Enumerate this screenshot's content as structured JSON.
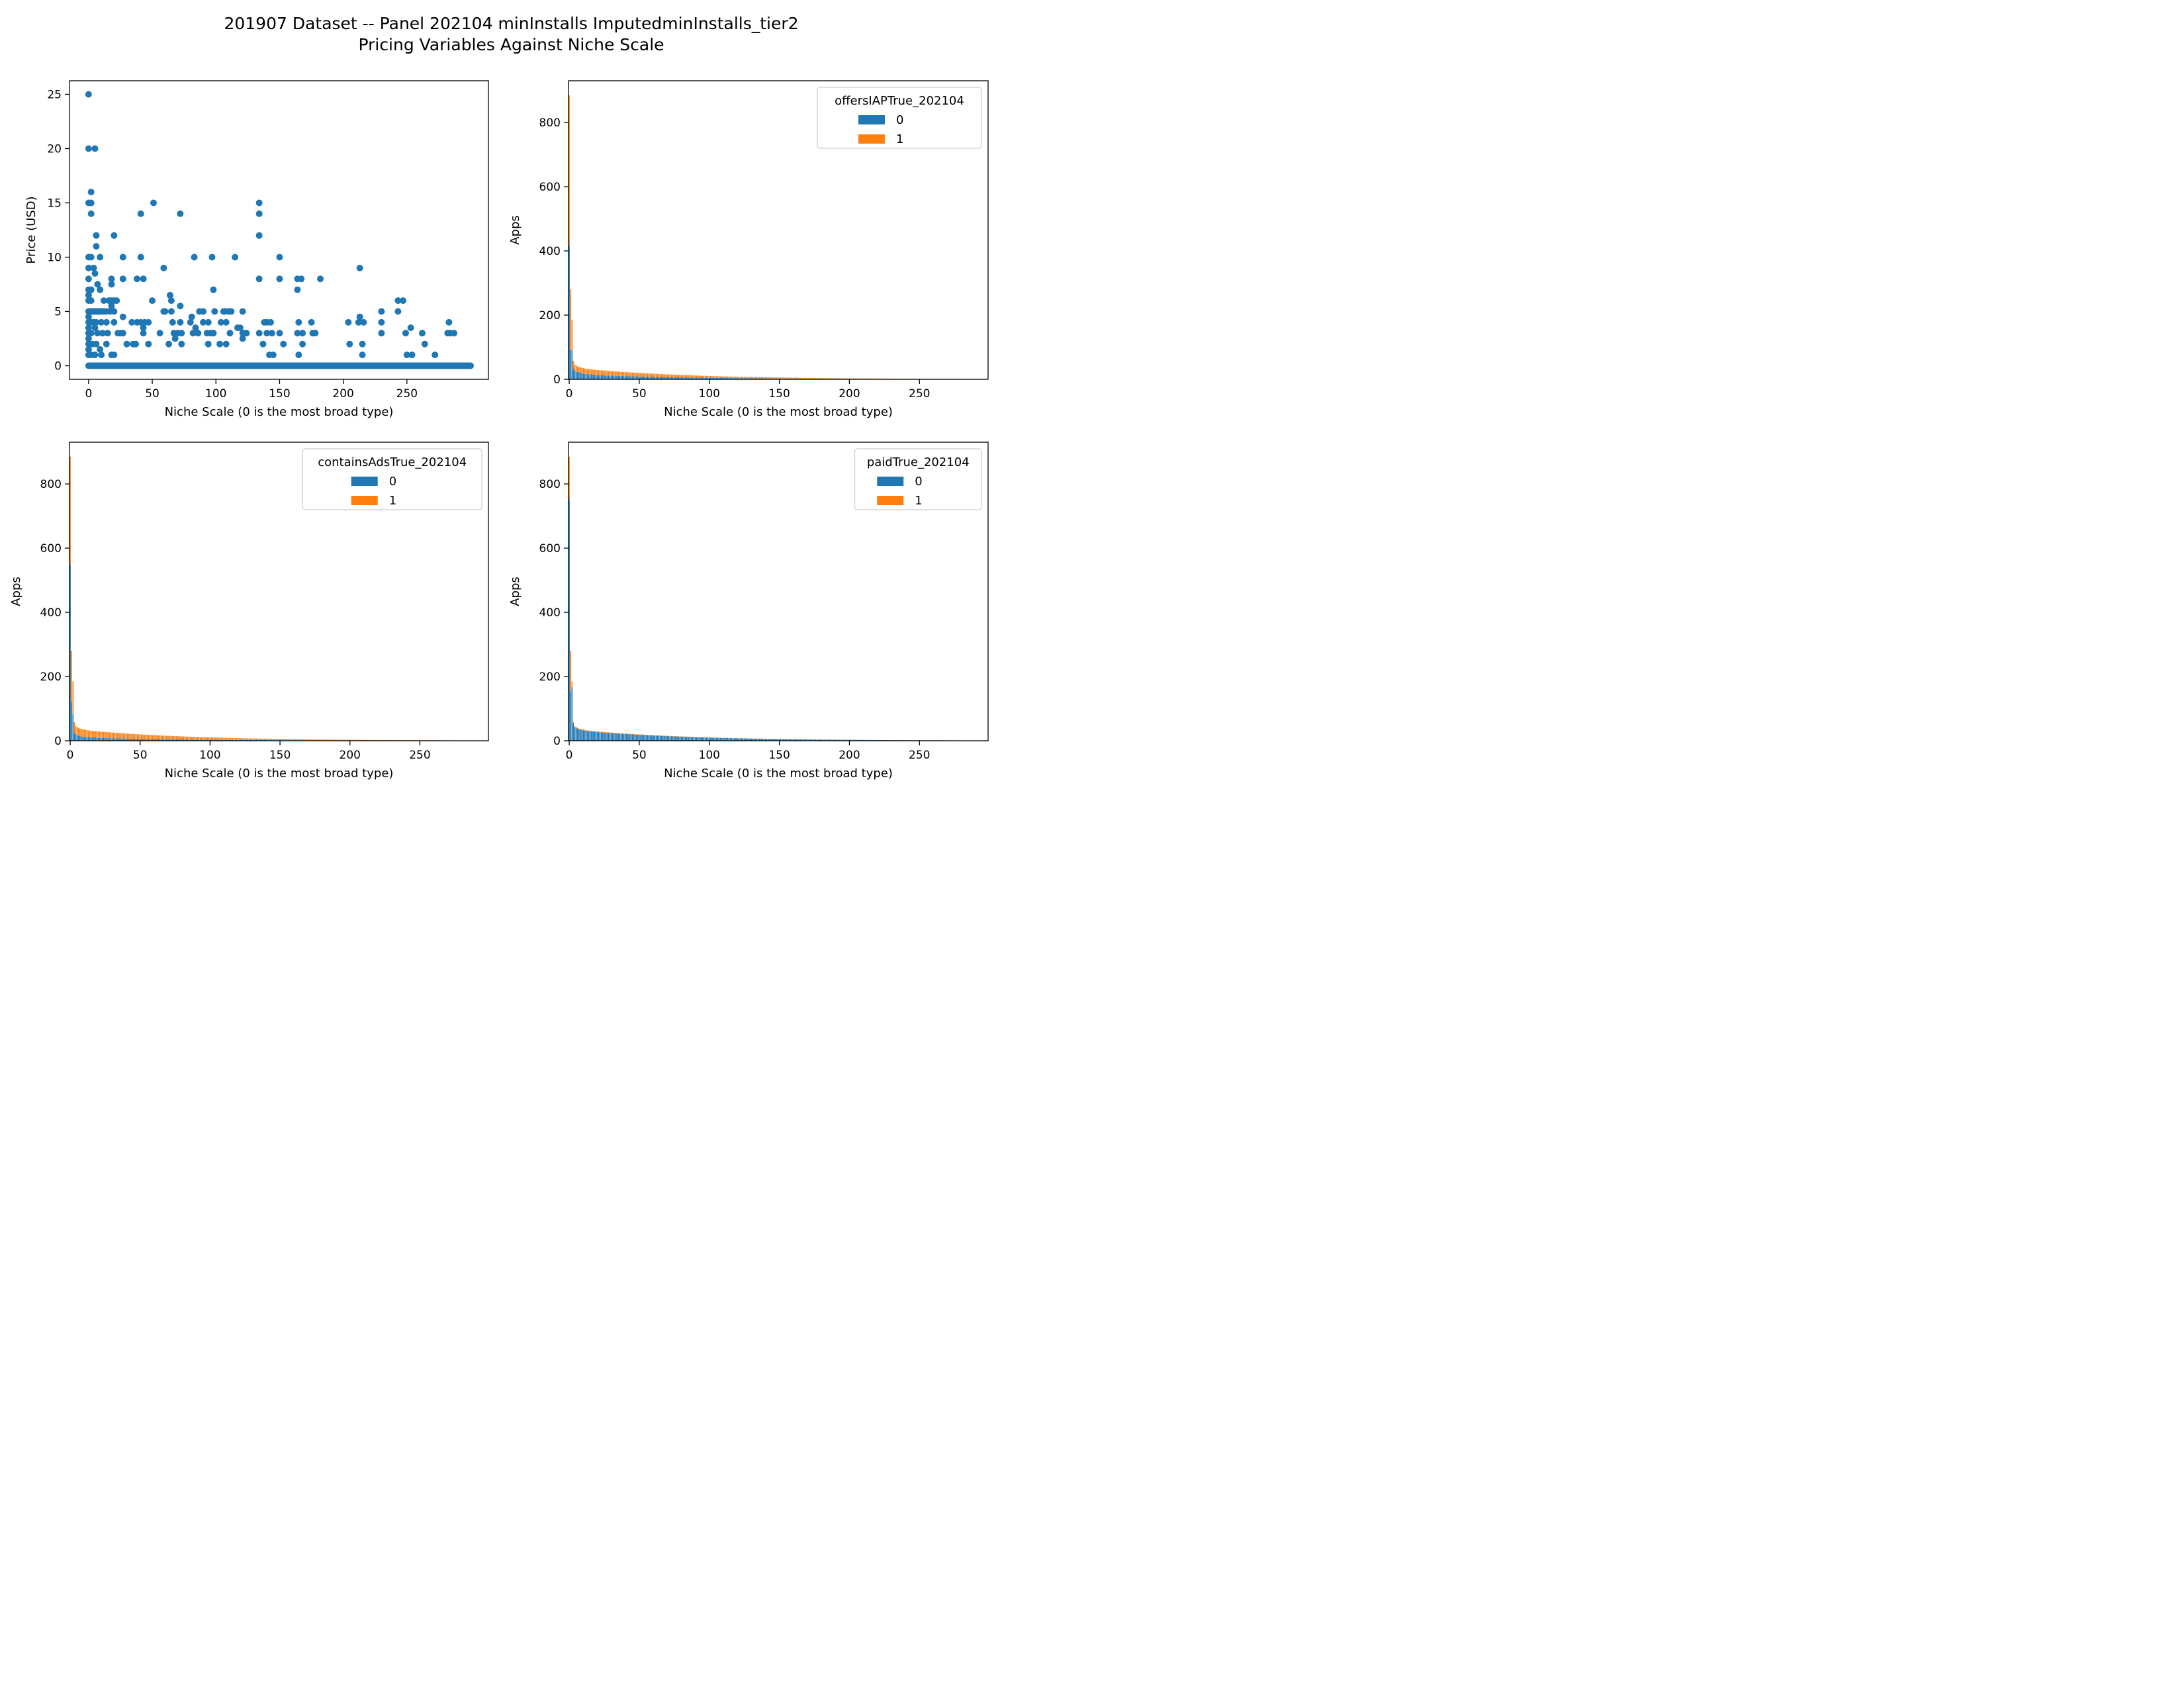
{
  "figure": {
    "title_line1": "201907 Dataset -- Panel 202104 minInstalls ImputedminInstalls_tier2",
    "title_line2": "Pricing Variables Against Niche Scale"
  },
  "colors": {
    "series0": "#1f77b4",
    "series1": "#ff7f0e",
    "axis": "#000000"
  },
  "chart_data": [
    {
      "type": "scatter",
      "xlabel": "Niche Scale (0 is the most broad type)",
      "ylabel": "Price (USD)",
      "xlim": [
        -15,
        314
      ],
      "ylim": [
        -1.25,
        26.25
      ],
      "xticks": [
        0,
        50,
        100,
        150,
        200,
        250
      ],
      "yticks": [
        0,
        5,
        10,
        15,
        20,
        25
      ],
      "baseline": {
        "y": 0,
        "x_from": 0,
        "x_to": 300
      },
      "points": [
        [
          0,
          25
        ],
        [
          0,
          20
        ],
        [
          5,
          20
        ],
        [
          0,
          15
        ],
        [
          2,
          15
        ],
        [
          2,
          16
        ],
        [
          2,
          14
        ],
        [
          0,
          10
        ],
        [
          2,
          10
        ],
        [
          6,
          12
        ],
        [
          6,
          11
        ],
        [
          9,
          10
        ],
        [
          0,
          9
        ],
        [
          4,
          9
        ],
        [
          5,
          8.5
        ],
        [
          0,
          8
        ],
        [
          7,
          7.5
        ],
        [
          0,
          7
        ],
        [
          2,
          7
        ],
        [
          9,
          7
        ],
        [
          0,
          6.5
        ],
        [
          0,
          6
        ],
        [
          2,
          6
        ],
        [
          12,
          6
        ],
        [
          16,
          6
        ],
        [
          0,
          5
        ],
        [
          1,
          5
        ],
        [
          2,
          5
        ],
        [
          3,
          5
        ],
        [
          4,
          5
        ],
        [
          5,
          5
        ],
        [
          6,
          5
        ],
        [
          7,
          5
        ],
        [
          8,
          5
        ],
        [
          9,
          5
        ],
        [
          10,
          5
        ],
        [
          12,
          5
        ],
        [
          14,
          5
        ],
        [
          17,
          5
        ],
        [
          20,
          5
        ],
        [
          0,
          4.5
        ],
        [
          2,
          4
        ],
        [
          0,
          4
        ],
        [
          4,
          4
        ],
        [
          6,
          4
        ],
        [
          10,
          4
        ],
        [
          14,
          4
        ],
        [
          20,
          4
        ],
        [
          0,
          3.5
        ],
        [
          5,
          3.5
        ],
        [
          0,
          3
        ],
        [
          2,
          3
        ],
        [
          7,
          3
        ],
        [
          11,
          3
        ],
        [
          15,
          3
        ],
        [
          0,
          2.5
        ],
        [
          3,
          2
        ],
        [
          6,
          2
        ],
        [
          0,
          2
        ],
        [
          14,
          2
        ],
        [
          0,
          1.5
        ],
        [
          9,
          1.5
        ],
        [
          0,
          1
        ],
        [
          2,
          1
        ],
        [
          5,
          1
        ],
        [
          10,
          1
        ],
        [
          18,
          1
        ],
        [
          20,
          1
        ],
        [
          18,
          8
        ],
        [
          18,
          7.5
        ],
        [
          18,
          6
        ],
        [
          18,
          5.5
        ],
        [
          20,
          12
        ],
        [
          20,
          6
        ],
        [
          22,
          6
        ],
        [
          23,
          3
        ],
        [
          25,
          3
        ],
        [
          27,
          8
        ],
        [
          27,
          10
        ],
        [
          27,
          4.5
        ],
        [
          27,
          3
        ],
        [
          30,
          2
        ],
        [
          34,
          4
        ],
        [
          35,
          2
        ],
        [
          37,
          2
        ],
        [
          38,
          8
        ],
        [
          38,
          4
        ],
        [
          41,
          14
        ],
        [
          41,
          10
        ],
        [
          41,
          4
        ],
        [
          43,
          8
        ],
        [
          43,
          3.5
        ],
        [
          43,
          3
        ],
        [
          44,
          4
        ],
        [
          47,
          2
        ],
        [
          47,
          4
        ],
        [
          50,
          6
        ],
        [
          51,
          15
        ],
        [
          56,
          3
        ],
        [
          59,
          9
        ],
        [
          59,
          5
        ],
        [
          60,
          5
        ],
        [
          63,
          2
        ],
        [
          64,
          6.5
        ],
        [
          65,
          6
        ],
        [
          65,
          5
        ],
        [
          66,
          4
        ],
        [
          67,
          3
        ],
        [
          68,
          2.5
        ],
        [
          70,
          3
        ],
        [
          72,
          14
        ],
        [
          72,
          5.5
        ],
        [
          72,
          4
        ],
        [
          73,
          3
        ],
        [
          73,
          2
        ],
        [
          80,
          4
        ],
        [
          81,
          4.5
        ],
        [
          82,
          3
        ],
        [
          83,
          10
        ],
        [
          84,
          3.5
        ],
        [
          86,
          3
        ],
        [
          87,
          5
        ],
        [
          90,
          4
        ],
        [
          90,
          5
        ],
        [
          93,
          3
        ],
        [
          94,
          4
        ],
        [
          94,
          2
        ],
        [
          96,
          3
        ],
        [
          97,
          10
        ],
        [
          98,
          3
        ],
        [
          98,
          7
        ],
        [
          99,
          5
        ],
        [
          103,
          2
        ],
        [
          104,
          4
        ],
        [
          106,
          5
        ],
        [
          107,
          5
        ],
        [
          108,
          2
        ],
        [
          108,
          4
        ],
        [
          110,
          5
        ],
        [
          111,
          3
        ],
        [
          112,
          5
        ],
        [
          115,
          10
        ],
        [
          117,
          3.5
        ],
        [
          119,
          3.5
        ],
        [
          121,
          5
        ],
        [
          121,
          3
        ],
        [
          121,
          2.5
        ],
        [
          122,
          3
        ],
        [
          124,
          3
        ],
        [
          134,
          15
        ],
        [
          134,
          14
        ],
        [
          134,
          12
        ],
        [
          134,
          8
        ],
        [
          134,
          3
        ],
        [
          137,
          2
        ],
        [
          138,
          4
        ],
        [
          140,
          3
        ],
        [
          140,
          4
        ],
        [
          142,
          1
        ],
        [
          143,
          4
        ],
        [
          144,
          3
        ],
        [
          145,
          1
        ],
        [
          150,
          10
        ],
        [
          150,
          8
        ],
        [
          150,
          3
        ],
        [
          153,
          2
        ],
        [
          164,
          8
        ],
        [
          164,
          7
        ],
        [
          164,
          3
        ],
        [
          165,
          4
        ],
        [
          165,
          1
        ],
        [
          167,
          8
        ],
        [
          168,
          2
        ],
        [
          168,
          3
        ],
        [
          175,
          4
        ],
        [
          176,
          3
        ],
        [
          178,
          3
        ],
        [
          182,
          8
        ],
        [
          204,
          4
        ],
        [
          205,
          2
        ],
        [
          212,
          4
        ],
        [
          213,
          9
        ],
        [
          213,
          4.5
        ],
        [
          215,
          2
        ],
        [
          215,
          1
        ],
        [
          216,
          4
        ],
        [
          230,
          5
        ],
        [
          230,
          4
        ],
        [
          230,
          3
        ],
        [
          243,
          6
        ],
        [
          243,
          5
        ],
        [
          247,
          6
        ],
        [
          249,
          3
        ],
        [
          250,
          1
        ],
        [
          253,
          3.5
        ],
        [
          254,
          1
        ],
        [
          262,
          3
        ],
        [
          264,
          2
        ],
        [
          272,
          1
        ],
        [
          282,
          3
        ],
        [
          283,
          4
        ],
        [
          284,
          3
        ],
        [
          287,
          3
        ]
      ]
    },
    {
      "type": "bar",
      "stacked": true,
      "xlabel": "Niche Scale (0 is the most broad type)",
      "ylabel": "Apps",
      "legend_title": "offersIAPTrue_202104",
      "legend_labels": [
        "0",
        "1"
      ],
      "legend_position": "upper right",
      "xlim": [
        -0.5,
        299
      ],
      "ylim": [
        0,
        930
      ],
      "xticks": [
        0,
        50,
        100,
        150,
        200,
        250
      ],
      "yticks": [
        0,
        200,
        400,
        600,
        800
      ],
      "num_categories": 286,
      "head_totals": [
        885,
        280,
        185,
        58,
        45,
        43,
        40,
        38,
        37,
        36,
        35,
        34,
        33,
        32,
        32,
        31,
        31,
        30,
        30,
        30
      ],
      "head_share_series0": [
        0.47,
        0.32,
        0.5,
        0.55,
        0.6,
        0.55,
        0.55,
        0.6,
        0.55,
        0.55,
        0.5,
        0.5,
        0.5,
        0.5,
        0.5,
        0.5,
        0.5,
        0.5,
        0.5,
        0.5
      ],
      "tail_total_at_20": 29,
      "tail_total_at_285": 1,
      "tail_share_series0": 0.45
    },
    {
      "type": "bar",
      "stacked": true,
      "xlabel": "Niche Scale (0 is the most broad type)",
      "ylabel": "Apps",
      "legend_title": "containsAdsTrue_202104",
      "legend_labels": [
        "0",
        "1"
      ],
      "legend_position": "upper right",
      "xlim": [
        -0.5,
        299
      ],
      "ylim": [
        0,
        930
      ],
      "xticks": [
        0,
        50,
        100,
        150,
        200,
        250
      ],
      "yticks": [
        0,
        200,
        400,
        600,
        800
      ],
      "num_categories": 286,
      "head_totals": [
        885,
        280,
        185,
        58,
        45,
        43,
        40,
        38,
        37,
        36,
        35,
        34,
        33,
        32,
        32,
        31,
        31,
        30,
        30,
        30
      ],
      "head_share_series0": [
        0.62,
        0.43,
        0.45,
        0.4,
        0.45,
        0.4,
        0.4,
        0.4,
        0.35,
        0.35,
        0.35,
        0.35,
        0.35,
        0.35,
        0.35,
        0.35,
        0.35,
        0.35,
        0.35,
        0.35
      ],
      "tail_total_at_20": 29,
      "tail_total_at_285": 1,
      "tail_share_series0": 0.3
    },
    {
      "type": "bar",
      "stacked": true,
      "xlabel": "Niche Scale (0 is the most broad type)",
      "ylabel": "Apps",
      "legend_title": "paidTrue_202104",
      "legend_labels": [
        "0",
        "1"
      ],
      "legend_position": "upper right",
      "xlim": [
        -0.5,
        299
      ],
      "ylim": [
        0,
        930
      ],
      "xticks": [
        0,
        50,
        100,
        150,
        200,
        250
      ],
      "yticks": [
        0,
        200,
        400,
        600,
        800
      ],
      "num_categories": 286,
      "head_totals": [
        885,
        280,
        185,
        58,
        45,
        43,
        40,
        38,
        37,
        36,
        35,
        34,
        33,
        32,
        32,
        31,
        31,
        30,
        30,
        30
      ],
      "head_share_series0": [
        0.85,
        0.55,
        0.9,
        0.93,
        0.93,
        0.93,
        0.93,
        0.93,
        0.93,
        0.93,
        0.93,
        0.93,
        0.93,
        0.93,
        0.93,
        0.93,
        0.93,
        0.93,
        0.93,
        0.93
      ],
      "tail_total_at_20": 29,
      "tail_total_at_285": 1,
      "tail_share_series0": 0.93
    }
  ]
}
